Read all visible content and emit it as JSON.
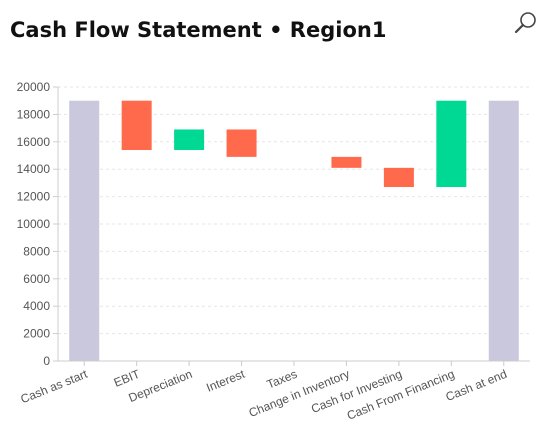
{
  "header": {
    "title": "Cash Flow Statement • Region1",
    "zoom_icon": "magnifier-icon"
  },
  "colors": {
    "total": "#c9c8dc",
    "increase": "#00d994",
    "decrease": "#ff6a4d",
    "grid": "#e6e6e6",
    "axis": "#cccccc"
  },
  "chart_data": {
    "type": "bar",
    "subtype": "waterfall",
    "title": "",
    "xlabel": "",
    "ylabel": "",
    "ylim": [
      0,
      20000
    ],
    "yticks": [
      0,
      2000,
      4000,
      6000,
      8000,
      10000,
      12000,
      14000,
      16000,
      18000,
      20000
    ],
    "grid": true,
    "categories": [
      "Cash as start",
      "EBIT",
      "Depreciation",
      "Interest",
      "Taxes",
      "Change in Inventory",
      "Cash for Investing",
      "Cash From Financing",
      "Cash at end"
    ],
    "bars": [
      {
        "category": "Cash as start",
        "kind": "total",
        "start": 0,
        "end": 19000
      },
      {
        "category": "EBIT",
        "kind": "decrease",
        "start": 19000,
        "end": 15400
      },
      {
        "category": "Depreciation",
        "kind": "increase",
        "start": 15400,
        "end": 16900
      },
      {
        "category": "Interest",
        "kind": "decrease",
        "start": 16900,
        "end": 14900
      },
      {
        "category": "Taxes",
        "kind": "decrease",
        "start": 14900,
        "end": 14900
      },
      {
        "category": "Change in Inventory",
        "kind": "decrease",
        "start": 14900,
        "end": 14100
      },
      {
        "category": "Cash for Investing",
        "kind": "decrease",
        "start": 14100,
        "end": 12700
      },
      {
        "category": "Cash From Financing",
        "kind": "increase",
        "start": 12700,
        "end": 19000
      },
      {
        "category": "Cash at end",
        "kind": "total",
        "start": 0,
        "end": 19000
      }
    ]
  }
}
